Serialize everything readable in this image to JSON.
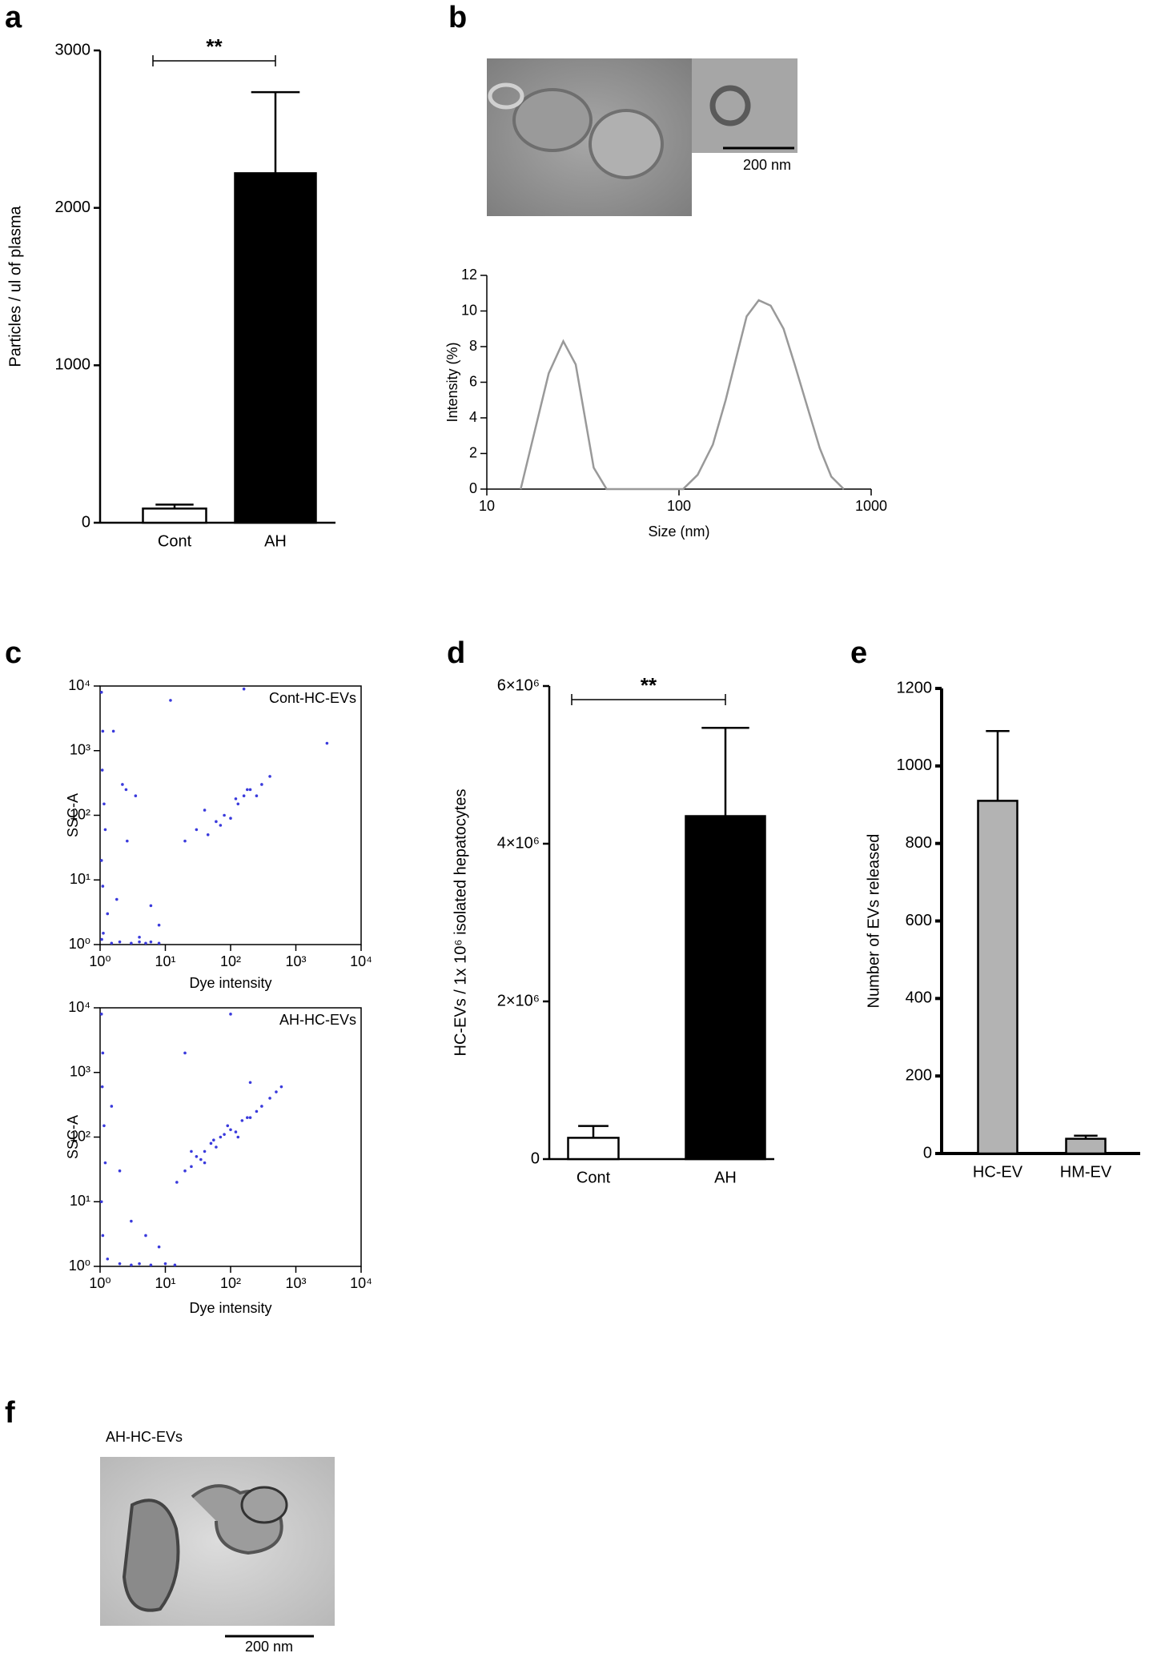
{
  "panel_labels": [
    "a",
    "b",
    "c",
    "d",
    "e",
    "f"
  ],
  "micrographs": {
    "b_scale": "200 nm",
    "f_title": "AH-HC-EVs",
    "f_scale": "200 nm"
  },
  "chart_data": [
    {
      "type": "bar",
      "ylabel": "Particles / ul of plasma",
      "categories": [
        "Cont",
        "AH"
      ],
      "values": [
        90,
        2220
      ],
      "errors": [
        25,
        515
      ],
      "colors": [
        "#ffffff",
        "#000000"
      ],
      "ylim": [
        0,
        3000
      ],
      "yticks": [
        0,
        1000,
        2000,
        3000
      ],
      "significance": "**"
    },
    {
      "type": "line",
      "xlabel": "Size (nm)",
      "ylabel": "Intensity (%)",
      "xlog": true,
      "color": "#999999",
      "x": [
        15,
        21,
        25,
        29,
        36,
        42,
        105,
        125,
        150,
        175,
        200,
        225,
        260,
        300,
        350,
        400,
        460,
        540,
        620,
        720
      ],
      "values": [
        0,
        6.5,
        8.3,
        7,
        1.2,
        0,
        0,
        0.8,
        2.5,
        5,
        7.5,
        9.7,
        10.6,
        10.3,
        9,
        7,
        4.8,
        2.3,
        0.7,
        0
      ],
      "xlim": [
        10,
        1000
      ],
      "xticks": [
        10,
        100,
        1000
      ],
      "ylim": [
        0,
        12
      ],
      "yticks": [
        0,
        2,
        4,
        6,
        8,
        10,
        12
      ]
    },
    {
      "type": "scatter",
      "annotation": "Cont-HC-EVs",
      "xlabel": "Dye intensity",
      "ylabel": "SSC-A",
      "xlog": true,
      "ylog": true,
      "color": "#3a3adc",
      "x": [
        1.05,
        1.1,
        1.08,
        1.15,
        1.2,
        1.05,
        1.1,
        1.3,
        1.12,
        1.06,
        1.5,
        2,
        3,
        4,
        5,
        6,
        8,
        2.2,
        3.5,
        2.6,
        1.8,
        20,
        30,
        45,
        60,
        80,
        100,
        130,
        160,
        200,
        250,
        300,
        40,
        70,
        120,
        180,
        2.5,
        6,
        12,
        400,
        3000,
        160,
        8,
        4,
        1.6
      ],
      "values": [
        8000,
        2000,
        500,
        150,
        60,
        20,
        8,
        3,
        1.5,
        1.2,
        1.05,
        1.1,
        1.05,
        1.1,
        1.05,
        1.1,
        1.05,
        300,
        200,
        40,
        5,
        40,
        60,
        50,
        80,
        100,
        90,
        150,
        200,
        250,
        200,
        300,
        120,
        70,
        180,
        250,
        250,
        4,
        6000,
        400,
        1300,
        9000,
        2,
        1.3,
        2000
      ],
      "xlim": [
        1,
        10000
      ],
      "ylim": [
        1,
        10000
      ],
      "xticks": [
        {
          "value": 1,
          "label": "10⁰"
        },
        {
          "value": 10,
          "label": "10¹"
        },
        {
          "value": 100,
          "label": "10²"
        },
        {
          "value": 1000,
          "label": "10³"
        },
        {
          "value": 10000,
          "label": "10⁴"
        }
      ],
      "yticks": [
        {
          "value": 1,
          "label": "10⁰"
        },
        {
          "value": 10,
          "label": "10¹"
        },
        {
          "value": 100,
          "label": "10²"
        },
        {
          "value": 1000,
          "label": "10³"
        },
        {
          "value": 10000,
          "label": "10⁴"
        }
      ]
    },
    {
      "type": "scatter",
      "annotation": "AH-HC-EVs",
      "xlabel": "Dye intensity",
      "ylabel": "SSC-A",
      "xlog": true,
      "ylog": true,
      "color": "#3a3adc",
      "x": [
        1.05,
        1.1,
        1.08,
        1.15,
        1.2,
        1.05,
        1.1,
        1.3,
        2,
        3,
        4,
        6,
        10,
        14,
        15,
        20,
        25,
        30,
        35,
        40,
        50,
        60,
        70,
        80,
        100,
        120,
        150,
        200,
        250,
        300,
        400,
        500,
        600,
        25,
        40,
        55,
        90,
        130,
        180,
        2,
        3,
        5,
        8,
        20,
        100,
        200,
        1.5
      ],
      "values": [
        8000,
        2000,
        600,
        150,
        40,
        10,
        3,
        1.3,
        1.1,
        1.05,
        1.1,
        1.05,
        1.1,
        1.05,
        20,
        30,
        35,
        50,
        45,
        60,
        80,
        70,
        100,
        110,
        130,
        120,
        180,
        200,
        250,
        300,
        400,
        500,
        600,
        60,
        40,
        90,
        150,
        100,
        200,
        30,
        5,
        3,
        2,
        2000,
        8000,
        700,
        300
      ],
      "xlim": [
        1,
        10000
      ],
      "ylim": [
        1,
        10000
      ],
      "xticks": [
        {
          "value": 1,
          "label": "10⁰"
        },
        {
          "value": 10,
          "label": "10¹"
        },
        {
          "value": 100,
          "label": "10²"
        },
        {
          "value": 1000,
          "label": "10³"
        },
        {
          "value": 10000,
          "label": "10⁴"
        }
      ],
      "yticks": [
        {
          "value": 1,
          "label": "10⁰"
        },
        {
          "value": 10,
          "label": "10¹"
        },
        {
          "value": 100,
          "label": "10²"
        },
        {
          "value": 1000,
          "label": "10³"
        },
        {
          "value": 10000,
          "label": "10⁴"
        }
      ]
    },
    {
      "type": "bar",
      "ylabel": "HC-EVs / 1x 10⁶ isolated hepatocytes",
      "categories": [
        "Cont",
        "AH"
      ],
      "values": [
        270000,
        4350000
      ],
      "errors": [
        150000,
        1120000
      ],
      "colors": [
        "#ffffff",
        "#000000"
      ],
      "ylim": [
        0,
        6000000
      ],
      "yticks": [
        0,
        {
          "value": 2000000,
          "label": "2×10⁶"
        },
        {
          "value": 4000000,
          "label": "4×10⁶"
        },
        {
          "value": 6000000,
          "label": "6×10⁶"
        }
      ],
      "significance": "**"
    },
    {
      "type": "bar",
      "ylabel": "Number of EVs released",
      "categories": [
        "HC-EV",
        "HM-EV"
      ],
      "values": [
        910,
        38
      ],
      "errors": [
        180,
        8
      ],
      "colors": [
        "#b3b3b3",
        "#b3b3b3"
      ],
      "ylim": [
        0,
        1200
      ],
      "yticks": [
        0,
        200,
        400,
        600,
        800,
        1000,
        1200
      ]
    }
  ]
}
